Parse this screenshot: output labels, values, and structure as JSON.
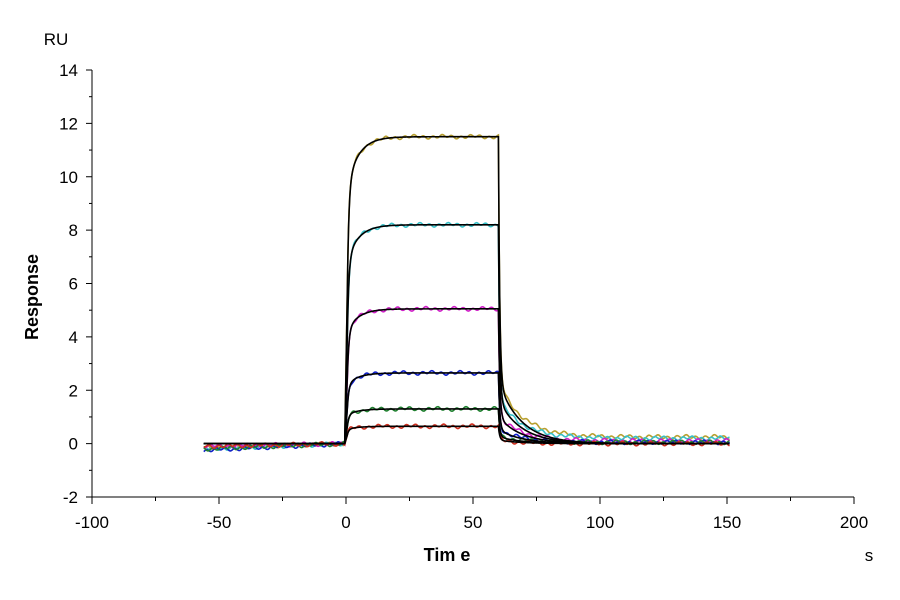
{
  "chart_data": {
    "type": "line",
    "title": "",
    "xlabel": "Tim e",
    "ylabel": "Response",
    "x_unit": "s",
    "y_unit": "RU",
    "xlim": [
      -100,
      200
    ],
    "ylim": [
      -2,
      14
    ],
    "x_ticks": [
      -100,
      -50,
      0,
      50,
      100,
      150,
      200
    ],
    "y_ticks": [
      -2,
      0,
      2,
      4,
      6,
      8,
      10,
      12,
      14
    ],
    "x_tick_labels": [
      "-100",
      "-50",
      "0",
      "50",
      "100",
      "150",
      "200"
    ],
    "y_tick_labels": [
      "-2",
      "0",
      "2",
      "4",
      "6",
      "8",
      "10",
      "12",
      "14"
    ],
    "grid": false,
    "legend": "none",
    "association_start": 0,
    "dissociation_start": 60,
    "x_min_data": -56,
    "x_max_data": 151,
    "fit_color": "#000000",
    "series": [
      {
        "color": "#b8a030",
        "plateau": 11.5,
        "baseline_end": 0.25,
        "data_start": -0.15
      },
      {
        "color": "#38c0c8",
        "plateau": 8.2,
        "baseline_end": 0.2,
        "data_start": -0.2
      },
      {
        "color": "#d020c8",
        "plateau": 5.05,
        "baseline_end": 0.1,
        "data_start": -0.1
      },
      {
        "color": "#1020c8",
        "plateau": 2.65,
        "baseline_end": 0.05,
        "data_start": -0.25
      },
      {
        "color": "#208030",
        "plateau": 1.3,
        "baseline_end": 0.05,
        "data_start": -0.2
      },
      {
        "color": "#d03020",
        "plateau": 0.65,
        "baseline_end": 0.0,
        "data_start": -0.1
      }
    ]
  }
}
